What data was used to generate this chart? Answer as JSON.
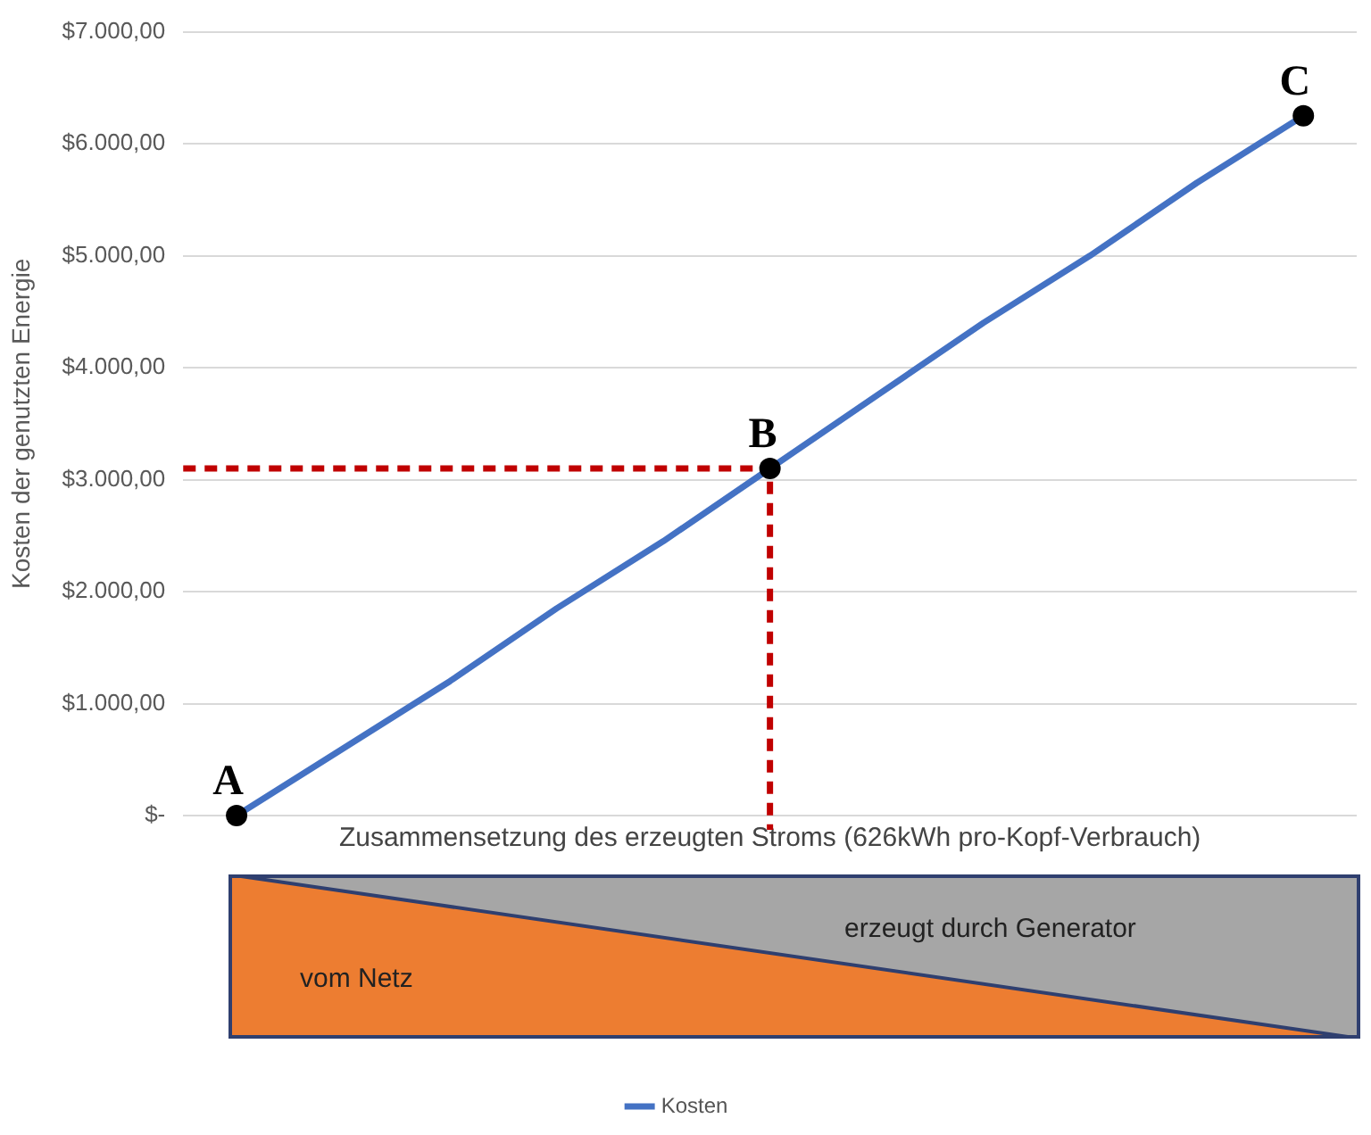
{
  "chart_data": {
    "type": "line",
    "xlabel": "Zusammensetzung des erzeugten Stroms (626kWh pro-Kopf-Verbrauch)",
    "ylabel": "Kosten der genutzten Energie",
    "categories": [
      null,
      null,
      null,
      null,
      null,
      null,
      null,
      null,
      null,
      null,
      null
    ],
    "ylim": [
      0,
      7000
    ],
    "yticks": [
      {
        "value": 0,
        "label": "$-"
      },
      {
        "value": 1000,
        "label": "$1.000,00"
      },
      {
        "value": 2000,
        "label": "$2.000,00"
      },
      {
        "value": 3000,
        "label": "$3.000,00"
      },
      {
        "value": 4000,
        "label": "$4.000,00"
      },
      {
        "value": 5000,
        "label": "$5.000,00"
      },
      {
        "value": 6000,
        "label": "$6.000,00"
      },
      {
        "value": 7000,
        "label": "$7.000,00"
      }
    ],
    "tick_labels": "y",
    "grid": "y",
    "legend": "bottom",
    "series": [
      {
        "name": "Kosten",
        "color": "#4472c4",
        "values": [
          0,
          600,
          1200,
          1850,
          2450,
          3100,
          3750,
          4400,
          5000,
          5650,
          6250
        ]
      }
    ],
    "ref_lines": [
      {
        "axis": "y",
        "value": 3100,
        "color": "#c00000",
        "line_style": "dashed"
      }
    ],
    "annotations": [
      {
        "text": "A",
        "y": 0
      },
      {
        "text": "B",
        "y": 3100
      },
      {
        "text": "C",
        "y": 6250
      },
      "vom Netz",
      "erzeugt durch Generator"
    ]
  }
}
